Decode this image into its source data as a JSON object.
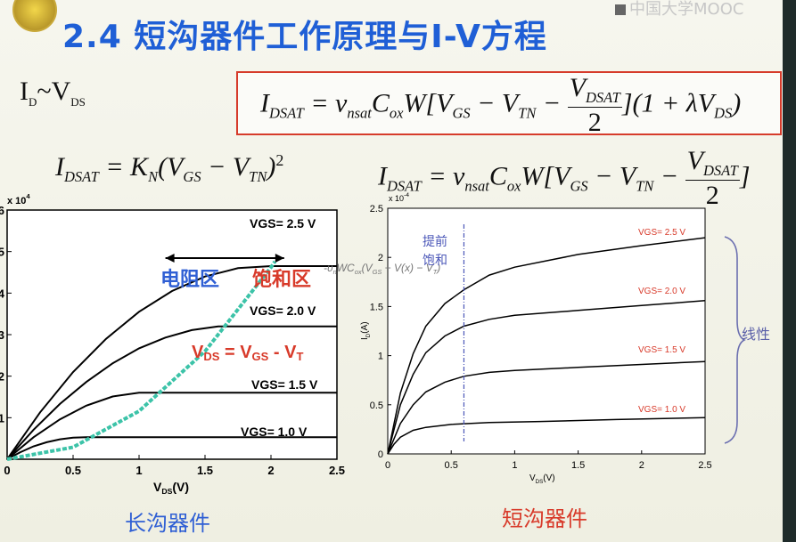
{
  "header": {
    "title": "2.4 短沟器件工作原理与I-V方程",
    "watermark": "中国大学MOOC"
  },
  "left_heading": {
    "main": "I",
    "sub1": "D",
    "tilde": "~V",
    "sub2": "DS"
  },
  "formula_box": {
    "parts": [
      "I",
      "DSAT",
      " = ν",
      "nsat",
      "C",
      "ox",
      "W[V",
      "GS",
      " − V",
      "TN",
      " − "
    ],
    "frac_num_main": "V",
    "frac_num_sub": "DSAT",
    "frac_den": "2",
    "tail": "](1 + λV",
    "tail_sub": "DS",
    "tail_end": ")"
  },
  "eq_left": {
    "text": "I",
    "sub1": "DSAT",
    "mid": " = K",
    "sub2": "N",
    "rest": "(V",
    "sub3": "GS",
    "minus": " − V",
    "sub4": "TN",
    "end": ")",
    "sup": "2"
  },
  "eq_right": {
    "text": "I",
    "sub1": "DSAT",
    "mid": " = ν",
    "sub2": "nsat",
    "c": "C",
    "sub3": "ox",
    "w": "W[V",
    "sub4": "GS",
    "minus": " − V",
    "sub5": "TN",
    "minus2": " − ",
    "frac_num": "V",
    "frac_sub": "DSAT",
    "frac_den": "2",
    "end": "]"
  },
  "captions": {
    "left": "长沟器件",
    "right": "短沟器件",
    "linear": "线性"
  },
  "colors": {
    "title": "#1f5fd6",
    "red": "#d83a2a",
    "blue": "#2f5fd4",
    "teal": "#3cc3a8",
    "box": "#d63b2b"
  },
  "chart_data": [
    {
      "type": "line",
      "name": "long-channel",
      "xlabel": "V",
      "xlabel_sub": "DS",
      "xlabel_unit": "(V)",
      "y_exponent": "x 10",
      "y_exponent_sup": "4",
      "xlim": [
        0,
        2.5
      ],
      "ylim": [
        0,
        6
      ],
      "xticks": [
        "0",
        "0.5",
        "1",
        "1.5",
        "2",
        "2.5"
      ],
      "yticks": [
        "1",
        "2",
        "3",
        "4",
        "5",
        "6"
      ],
      "series": [
        {
          "name": "VGS= 1.0 V",
          "x": [
            0,
            0.1,
            0.2,
            0.3,
            0.4,
            0.5,
            0.6,
            1.0,
            2.5
          ],
          "y": [
            0,
            0.17,
            0.31,
            0.41,
            0.48,
            0.52,
            0.53,
            0.53,
            0.53
          ]
        },
        {
          "name": "VGS= 1.5 V",
          "x": [
            0,
            0.2,
            0.4,
            0.6,
            0.8,
            1.0,
            1.2,
            2.5
          ],
          "y": [
            0,
            0.53,
            0.96,
            1.29,
            1.51,
            1.6,
            1.6,
            1.6
          ]
        },
        {
          "name": "VGS= 2.0 V",
          "x": [
            0,
            0.2,
            0.4,
            0.6,
            0.8,
            1.0,
            1.2,
            1.4,
            1.6,
            1.8,
            2.5
          ],
          "y": [
            0,
            0.71,
            1.33,
            1.86,
            2.31,
            2.67,
            2.93,
            3.11,
            3.2,
            3.2,
            3.2
          ]
        },
        {
          "name": "VGS= 2.5 V",
          "x": [
            0,
            0.25,
            0.5,
            0.75,
            1.0,
            1.25,
            1.5,
            1.75,
            2.0,
            2.2,
            2.5
          ],
          "y": [
            0,
            1.13,
            2.1,
            2.9,
            3.55,
            4.05,
            4.4,
            4.6,
            4.65,
            4.65,
            4.65
          ]
        }
      ],
      "boundary": {
        "label": "V_DS = V_GS - V_T",
        "x": [
          0,
          0.5,
          1.0,
          1.5,
          2.0,
          2.03
        ],
        "y": [
          0,
          0.29,
          1.16,
          2.6,
          4.62,
          4.76
        ]
      },
      "region_labels": {
        "left": "电阻区",
        "right": "饱和区"
      },
      "annotation_text": {
        "v1": "V",
        "s1": "DS",
        "eq": " = V",
        "s2": "GS",
        "dash": " - V",
        "s3": "T"
      },
      "arrow_x": [
        1.2,
        2.1
      ]
    },
    {
      "type": "line",
      "name": "short-channel",
      "xlabel": "V",
      "xlabel_sub": "DS",
      "xlabel_unit": "(V)",
      "ylabel": "I",
      "ylabel_sub": "D",
      "ylabel_unit": "(A)",
      "y_exponent": "x 10",
      "y_exponent_sup": "-4",
      "xlim": [
        0,
        2.5
      ],
      "ylim": [
        0,
        2.5
      ],
      "xticks": [
        "0",
        "0.5",
        "1",
        "1.5",
        "2",
        "2.5"
      ],
      "yticks": [
        "0",
        "0.5",
        "1",
        "1.5",
        "2",
        "2.5"
      ],
      "series": [
        {
          "name": "VGS= 1.0 V",
          "x": [
            0,
            0.05,
            0.1,
            0.2,
            0.3,
            0.5,
            0.8,
            1.2,
            1.8,
            2.5
          ],
          "y": [
            0,
            0.1,
            0.17,
            0.24,
            0.27,
            0.3,
            0.32,
            0.33,
            0.35,
            0.37
          ]
        },
        {
          "name": "VGS= 1.5 V",
          "x": [
            0,
            0.1,
            0.2,
            0.3,
            0.45,
            0.6,
            0.8,
            1.0,
            1.5,
            2.0,
            2.5
          ],
          "y": [
            0,
            0.31,
            0.5,
            0.63,
            0.73,
            0.79,
            0.83,
            0.85,
            0.88,
            0.91,
            0.94
          ]
        },
        {
          "name": "VGS= 2.0 V",
          "x": [
            0,
            0.1,
            0.2,
            0.3,
            0.45,
            0.6,
            0.8,
            1.0,
            1.5,
            2.0,
            2.5
          ],
          "y": [
            0,
            0.5,
            0.81,
            1.03,
            1.2,
            1.3,
            1.37,
            1.41,
            1.46,
            1.51,
            1.56
          ]
        },
        {
          "name": "VGS= 2.5 V",
          "x": [
            0,
            0.1,
            0.2,
            0.3,
            0.45,
            0.6,
            0.8,
            1.0,
            1.5,
            2.0,
            2.5
          ],
          "y": [
            0,
            0.62,
            1.02,
            1.3,
            1.53,
            1.67,
            1.82,
            1.9,
            2.03,
            2.12,
            2.2
          ]
        }
      ],
      "marker_line_x": 0.6,
      "marker_label_1": "提前",
      "marker_label_2": "饱和",
      "faint_formula": "υ",
      "faint_formula_sub": "n",
      "faint_formula_rest": "WC",
      "faint_formula_sub2": "ox",
      "faint_formula_end": "(V",
      "faint_formula_sub3": "GS",
      "faint_formula_end2": " − V(x) − V",
      "faint_formula_sub4": "T",
      "faint_formula_end3": ")"
    }
  ]
}
